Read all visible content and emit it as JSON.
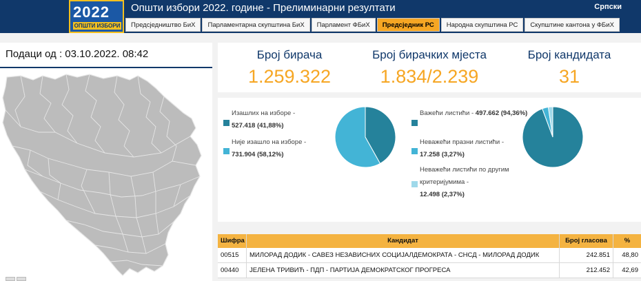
{
  "header": {
    "logo_year": "2022",
    "logo_sub": "ОПШТИ ИЗБОРИ",
    "title": "Општи избори 2022. године - Прелиминарни резултати",
    "language": "Српски"
  },
  "tabs": [
    {
      "label": "Предсједништво БиХ",
      "active": false
    },
    {
      "label": "Парламентарна скупштина БиХ",
      "active": false
    },
    {
      "label": "Парламент ФБиХ",
      "active": false
    },
    {
      "label": "Предсједник РС",
      "active": true
    },
    {
      "label": "Народна скупштина РС",
      "active": false
    },
    {
      "label": "Скупштине кантона у ФБиХ",
      "active": false
    }
  ],
  "left": {
    "data_from": "Подаци од : 03.10.2022. 08:42"
  },
  "stats": [
    {
      "label": "Број бирача",
      "value": "1.259.322"
    },
    {
      "label": "Број бирачких мјеста",
      "value": "1.834/2.239"
    },
    {
      "label": "Број кандидата",
      "value": "31"
    }
  ],
  "turnout": {
    "items": [
      {
        "label": "Изашлих на изборе -",
        "value": "527.418 (41,88%)",
        "share": 41.88,
        "color": "#25829b"
      },
      {
        "label": "Није изашло на изборе -",
        "value": "731.904 (58,12%)",
        "share": 58.12,
        "color": "#43b4d6"
      }
    ]
  },
  "ballots": {
    "items": [
      {
        "label": "Важећи листићи -",
        "value": "497.662 (94,36%)",
        "share": 94.36,
        "color": "#25829b"
      },
      {
        "label": "Неважећи празни листићи -",
        "value": "17.258 (3,27%)",
        "share": 3.27,
        "color": "#43b4d6"
      },
      {
        "label": "Неважећи листићи по другим критеријумима -",
        "value": "12.498 (2,37%)",
        "share": 2.37,
        "color": "#9fd9ea"
      }
    ]
  },
  "table": {
    "headers": [
      "Шифра",
      "Кандидат",
      "Број гласова",
      "%"
    ],
    "rows": [
      {
        "code": "00515",
        "candidate": "МИЛОРАД ДОДИК - САВЕЗ НЕЗАВИСНИХ СОЦИЈАЛДЕМОКРАТА - СНСД - МИЛОРАД ДОДИК",
        "votes": "242.851",
        "percent": "48,80"
      },
      {
        "code": "00440",
        "candidate": "ЈЕЛЕНА ТРИВИЋ - ПДП - ПАРТИЈА ДЕМОКРАТСКОГ ПРОГРЕСА",
        "votes": "212.452",
        "percent": "42,69"
      }
    ]
  },
  "colors": {
    "header_bg": "#10386a",
    "accent": "#f6a623",
    "map_fill": "#bcbcbc",
    "pie_dark": "#25829b",
    "pie_light": "#43b4d6"
  }
}
